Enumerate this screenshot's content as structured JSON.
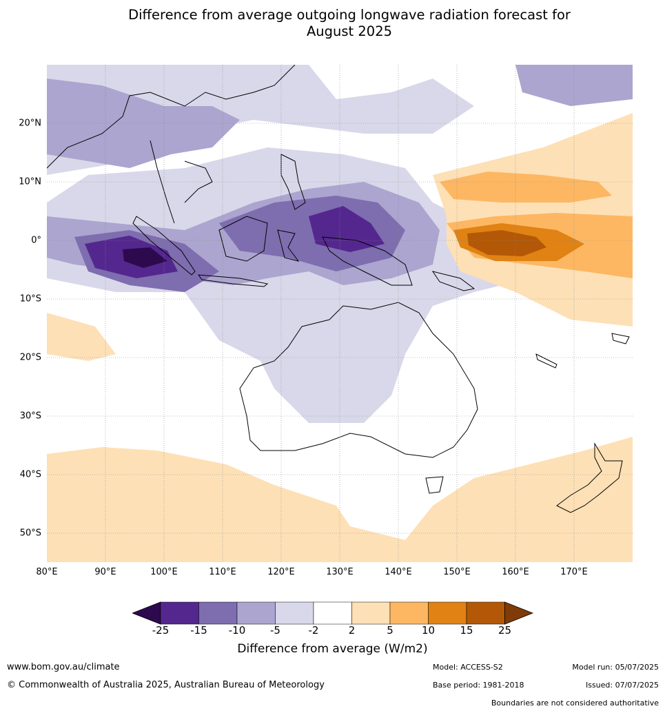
{
  "title_line1": "Difference from average outgoing longwave radiation forecast for",
  "title_line2": "August 2025",
  "map": {
    "lat_labels": [
      "20°N",
      "10°N",
      "0°",
      "10°S",
      "20°S",
      "30°S",
      "40°S",
      "50°S"
    ],
    "lon_labels": [
      "80°E",
      "90°E",
      "100°E",
      "110°E",
      "120°E",
      "130°E",
      "140°E",
      "150°E",
      "160°E",
      "170°E"
    ],
    "extent": {
      "lon": [
        80,
        180
      ],
      "lat": [
        -55,
        30
      ]
    }
  },
  "legend": {
    "label": "Difference from average (W/m2)",
    "ticks": [
      "-25",
      "-15",
      "-10",
      "-5",
      "-2",
      "2",
      "5",
      "10",
      "15",
      "25"
    ],
    "colors": [
      "#2d0a4e",
      "#54278f",
      "#7e6daf",
      "#aba5cf",
      "#d9d8ea",
      "#ffffff",
      "#fee0b6",
      "#fdb762",
      "#e08214",
      "#b35806",
      "#7f3b08"
    ]
  },
  "footer": {
    "url": "www.bom.gov.au/climate",
    "copyright": "© Commonwealth of Australia 2025, Australian Bureau of Meteorology",
    "model": "Model: ACCESS-S2",
    "base_period": "Base period: 1981-2018",
    "model_run": "Model run: 05/07/2025",
    "issued": "Issued: 07/07/2025",
    "boundaries": "Boundaries are not considered authoritative"
  }
}
